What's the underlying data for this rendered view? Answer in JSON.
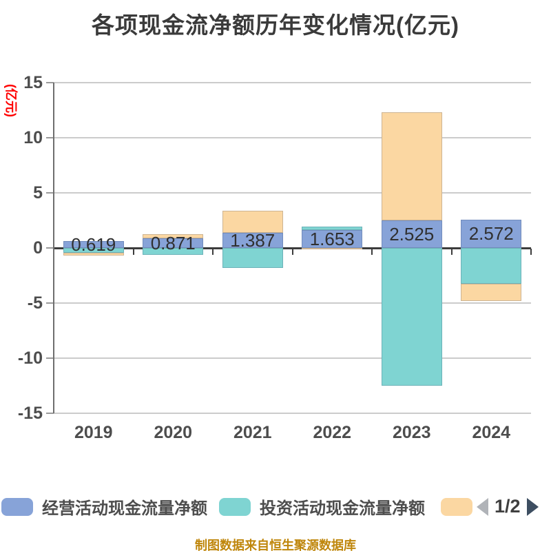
{
  "chart_data": {
    "type": "bar",
    "stacked": true,
    "title": "各项现金流净额历年变化情况(亿元)",
    "ylabel": "(亿元)",
    "categories": [
      "2019",
      "2020",
      "2021",
      "2022",
      "2023",
      "2024"
    ],
    "series": [
      {
        "name": "经营活动现金流量净额",
        "color": "#87A3D8",
        "values": [
          0.619,
          0.871,
          1.387,
          1.653,
          2.525,
          2.572
        ]
      },
      {
        "name": "投资活动现金流量净额",
        "color": "#7FD4D2",
        "values": [
          -0.41,
          -0.65,
          -1.81,
          0.27,
          -12.5,
          -3.25
        ]
      },
      {
        "name": "",
        "color": "#FBD7A2",
        "values": [
          -0.29,
          0.38,
          1.99,
          -0.15,
          9.78,
          -1.55
        ]
      }
    ],
    "bar_labels": [
      "0.619",
      "0.871",
      "1.387",
      "1.653",
      "2.525",
      "2.572"
    ],
    "yticks": [
      15,
      10,
      5,
      0,
      -5,
      -10,
      -15
    ],
    "ytick_labels": [
      "15",
      "10",
      "5",
      "0",
      "-5",
      "-10",
      "-15"
    ],
    "ylim": [
      -15,
      15
    ],
    "grid": true,
    "legend_position": "bottom"
  },
  "legend": {
    "items": [
      {
        "label": "经营活动现金流量净额",
        "color": "#87A3D8"
      },
      {
        "label": "投资活动现金流量净额",
        "color": "#7FD4D2"
      },
      {
        "label": "",
        "color": "#FBD7A2"
      }
    ],
    "pagination": {
      "current": "1/2",
      "prev_icon_color": "#b0b3b8",
      "next_icon_color": "#3d4e61"
    }
  },
  "footer": "制图数据来自恒生聚源数据库",
  "colors": {
    "title_text": "#3a3a3a",
    "axis_text": "#4d4d4d",
    "y_axis_unit_red": "#ff0000",
    "footer_gold": "#bf860b",
    "bar_value_text": "#303030"
  }
}
